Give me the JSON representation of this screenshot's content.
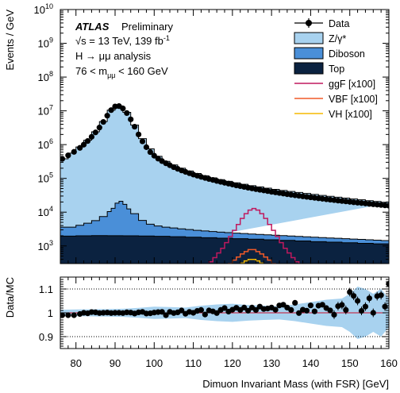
{
  "chart_data": {
    "type": "histogram",
    "title": "",
    "xlabel": "Dimuon Invariant Mass (with FSR) [GeV]",
    "main": {
      "ylabel": "Events / GeV",
      "yscale": "log",
      "ylim": [
        300,
        10000000000
      ],
      "ytick_labels": [
        {
          "base": "10",
          "exp": "3"
        },
        {
          "base": "10",
          "exp": "4"
        },
        {
          "base": "10",
          "exp": "5"
        },
        {
          "base": "10",
          "exp": "6"
        },
        {
          "base": "10",
          "exp": "7"
        },
        {
          "base": "10",
          "exp": "8"
        },
        {
          "base": "10",
          "exp": "9"
        },
        {
          "base": "10",
          "exp": "10"
        }
      ]
    },
    "ratio": {
      "ylabel": "Data/MC",
      "ylim": [
        0.85,
        1.15
      ],
      "ytick_labels": [
        "0.9",
        "1",
        "1.1"
      ],
      "reference_line": 1.0
    },
    "x": {
      "xlim": [
        76,
        160
      ],
      "tick_labels": [
        "80",
        "90",
        "100",
        "110",
        "120",
        "130",
        "140",
        "150",
        "160"
      ]
    },
    "annotations": {
      "experiment": "ATLAS",
      "status": "Preliminary",
      "energy_line": "√s = 13 TeV, 139 fb",
      "energy_sup": "-1",
      "analysis": "H → μμ analysis",
      "mass_range": "76 < m",
      "mass_range_sub": "μμ",
      "mass_range_end": " < 160 GeV"
    },
    "legend": {
      "placement": "top-right",
      "entries": [
        {
          "label": "Data",
          "style": "marker",
          "color": "#000000"
        },
        {
          "label": "Z/γ*",
          "style": "fill",
          "color": "#a8d2ef"
        },
        {
          "label": "Diboson",
          "style": "fill",
          "color": "#4a8fd8"
        },
        {
          "label": "Top",
          "style": "fill",
          "color": "#0b2240"
        },
        {
          "label": "ggF [x100]",
          "style": "line",
          "color": "#c0195e"
        },
        {
          "label": "VBF [x100]",
          "style": "line",
          "color": "#f05a28"
        },
        {
          "label": "VH [x100]",
          "style": "line",
          "color": "#f5b800"
        }
      ]
    },
    "colors": {
      "zgamma": "#a8d2ef",
      "diboson": "#4a8fd8",
      "top": "#0b2240",
      "ggF": "#c0195e",
      "VBF": "#f05a28",
      "VH": "#f5b800",
      "data": "#000000",
      "ratio_band": "#a8d2ef",
      "ratio_line": "#c8102e"
    },
    "series": {
      "data_points": {
        "x": [
          76.5,
          78,
          79.5,
          81,
          82,
          83,
          84,
          85,
          86,
          87,
          88,
          89,
          90,
          91,
          92,
          93,
          94,
          95,
          96,
          97,
          98,
          99,
          100,
          101,
          102,
          103,
          104,
          105,
          106,
          107,
          108,
          109,
          110,
          111,
          112,
          113,
          114,
          115,
          116,
          117,
          118,
          119,
          120,
          121,
          122,
          123,
          124,
          125,
          126,
          127,
          128,
          129,
          130,
          131,
          132,
          133,
          134,
          135,
          136,
          137,
          138,
          139,
          140,
          141,
          142,
          143,
          144,
          145,
          146,
          147,
          148,
          149,
          150,
          151,
          152,
          153,
          154,
          155,
          156,
          157,
          158,
          159,
          160
        ],
        "y": [
          380000,
          480000,
          610000,
          800000,
          1000000,
          1280000,
          1700000,
          2300000,
          3200000,
          4700000,
          7200000,
          10500000,
          13500000,
          13800000,
          11800000,
          8600000,
          5600000,
          3400000,
          2000000,
          1250000,
          840000,
          600000,
          470000,
          385000,
          325000,
          280000,
          245000,
          215000,
          192000,
          172000,
          156000,
          142000,
          130000,
          120000,
          111000,
          103000,
          96000,
          90000,
          84000,
          79000,
          74000,
          70000,
          66000,
          62000,
          59000,
          56000,
          53000,
          50500,
          48000,
          46000,
          44000,
          42000,
          40000,
          38500,
          37000,
          35500,
          34000,
          32800,
          31600,
          30500,
          29400,
          28400,
          27500,
          26600,
          25700,
          24900,
          24100,
          23400,
          22700,
          22000,
          21400,
          20800,
          20200,
          19600,
          19100,
          18600,
          18100,
          17600,
          17100,
          16700,
          16300,
          15900,
          15500
        ],
        "ratio": [
          0.99,
          0.99,
          0.99,
          0.995,
          1.0,
          0.998,
          1.003,
          1.002,
          0.999,
          1.0,
          1.001,
          0.999,
          1.0,
          1.0,
          0.999,
          1.002,
          1.001,
          0.997,
          1.002,
          1.004,
          0.997,
          0.998,
          1.001,
          1.003,
          1.004,
          0.99,
          1.004,
          0.999,
          1.002,
          1.01,
          0.996,
          1.004,
          1.0,
          1.008,
          1.012,
          0.993,
          1.01,
          1.006,
          0.999,
          1.012,
          1.02,
          1.005,
          1.013,
          1.021,
          1.012,
          1.022,
          1.009,
          1.022,
          1.012,
          1.026,
          1.016,
          1.018,
          1.022,
          1.013,
          1.031,
          1.034,
          1.022,
          1.012,
          1.042,
          0.999,
          1.013,
          1.009,
          1.031,
          1.006,
          1.03,
          1.034,
          1.02,
          1.01,
          0.992,
          1.028,
          1.033,
          1.012,
          1.087,
          1.071,
          1.05,
          1.008,
          1.026,
          1.061,
          1.0,
          1.07,
          1.074,
          1.026,
          1.122
        ]
      },
      "zgamma_total": {
        "edges": [
          76,
          78,
          80,
          82,
          84,
          86,
          88,
          90,
          92,
          94,
          96,
          98,
          100,
          102,
          104,
          106,
          108,
          110,
          112,
          114,
          116,
          118,
          120,
          122,
          124,
          126,
          128,
          130,
          132,
          134,
          136,
          138,
          140,
          142,
          144,
          146,
          148,
          150,
          152,
          154,
          156,
          158,
          160
        ],
        "values": [
          380000,
          560000,
          850000,
          1350000,
          2400000,
          4800000,
          10500000,
          14000000,
          9000000,
          3800000,
          1500000,
          750000,
          450000,
          320000,
          250000,
          200000,
          165000,
          140000,
          120000,
          104000,
          92000,
          82000,
          74000,
          67000,
          61000,
          56000,
          51500,
          47500,
          44000,
          41000,
          38300,
          35800,
          33500,
          31400,
          29500,
          27700,
          26100,
          24600,
          23200,
          21900,
          20700,
          19600,
          18500
        ]
      },
      "diboson_total": {
        "edges": [
          76,
          80,
          82,
          84,
          86,
          88,
          89,
          90,
          91,
          92,
          93,
          94,
          96,
          98,
          100,
          102,
          104,
          106,
          108,
          110,
          112,
          114,
          116,
          118,
          120,
          122,
          124,
          126,
          128,
          130,
          132,
          134,
          136,
          138,
          140,
          142,
          144,
          146,
          148,
          150,
          152,
          154,
          156,
          158,
          160
        ],
        "values": [
          3600,
          4100,
          4700,
          5600,
          7400,
          10400,
          13000,
          18500,
          21000,
          17000,
          12500,
          9000,
          5700,
          4400,
          3900,
          3600,
          3400,
          3200,
          3050,
          2900,
          2780,
          2670,
          2570,
          2480,
          2400,
          2330,
          2260,
          2200,
          2140,
          2080,
          2020,
          1970,
          1920,
          1870,
          1820,
          1770,
          1720,
          1680,
          1640,
          1600,
          1560,
          1520,
          1480,
          1440
        ]
      },
      "top_total": {
        "edges": [
          76,
          80,
          84,
          88,
          92,
          96,
          100,
          104,
          108,
          112,
          116,
          120,
          124,
          128,
          132,
          136,
          140,
          144,
          148,
          152,
          156,
          160
        ],
        "values": [
          1950,
          2000,
          2020,
          2010,
          2000,
          1970,
          1930,
          1880,
          1820,
          1760,
          1700,
          1640,
          1580,
          1520,
          1460,
          1400,
          1340,
          1290,
          1240,
          1190,
          1150
        ]
      },
      "ggF_x100": {
        "edges": [
          113,
          114,
          115,
          116,
          117,
          118,
          119,
          120,
          121,
          122,
          123,
          124,
          125,
          126,
          127,
          128,
          129,
          130,
          131,
          132,
          133,
          134,
          135,
          136,
          137
        ],
        "values": [
          250,
          340,
          450,
          620,
          850,
          1250,
          1900,
          2900,
          4300,
          6500,
          9000,
          11500,
          12800,
          11500,
          9000,
          6500,
          4300,
          2900,
          1900,
          1250,
          850,
          620,
          450,
          340
        ]
      },
      "VBF_x100": {
        "edges": [
          119,
          120,
          121,
          122,
          123,
          124,
          125,
          126,
          127,
          128,
          129,
          130,
          131
        ],
        "values": [
          300,
          380,
          470,
          580,
          680,
          780,
          780,
          680,
          580,
          470,
          380,
          300
        ]
      },
      "VH_x100": {
        "edges": [
          121,
          122,
          123,
          124,
          125,
          126,
          127,
          128,
          129
        ],
        "values": [
          260,
          310,
          360,
          400,
          400,
          360,
          310,
          260
        ]
      },
      "ratio_band": {
        "x": [
          76,
          80,
          84,
          88,
          92,
          96,
          100,
          104,
          108,
          112,
          116,
          120,
          124,
          128,
          132,
          136,
          140,
          144,
          148,
          150,
          152,
          154,
          156,
          158,
          160
        ],
        "half_width": [
          0.013,
          0.014,
          0.015,
          0.016,
          0.017,
          0.021,
          0.026,
          0.024,
          0.022,
          0.03,
          0.035,
          0.038,
          0.033,
          0.03,
          0.028,
          0.035,
          0.045,
          0.055,
          0.06,
          0.08,
          0.11,
          0.1,
          0.08,
          0.1,
          0.06
        ]
      }
    }
  }
}
